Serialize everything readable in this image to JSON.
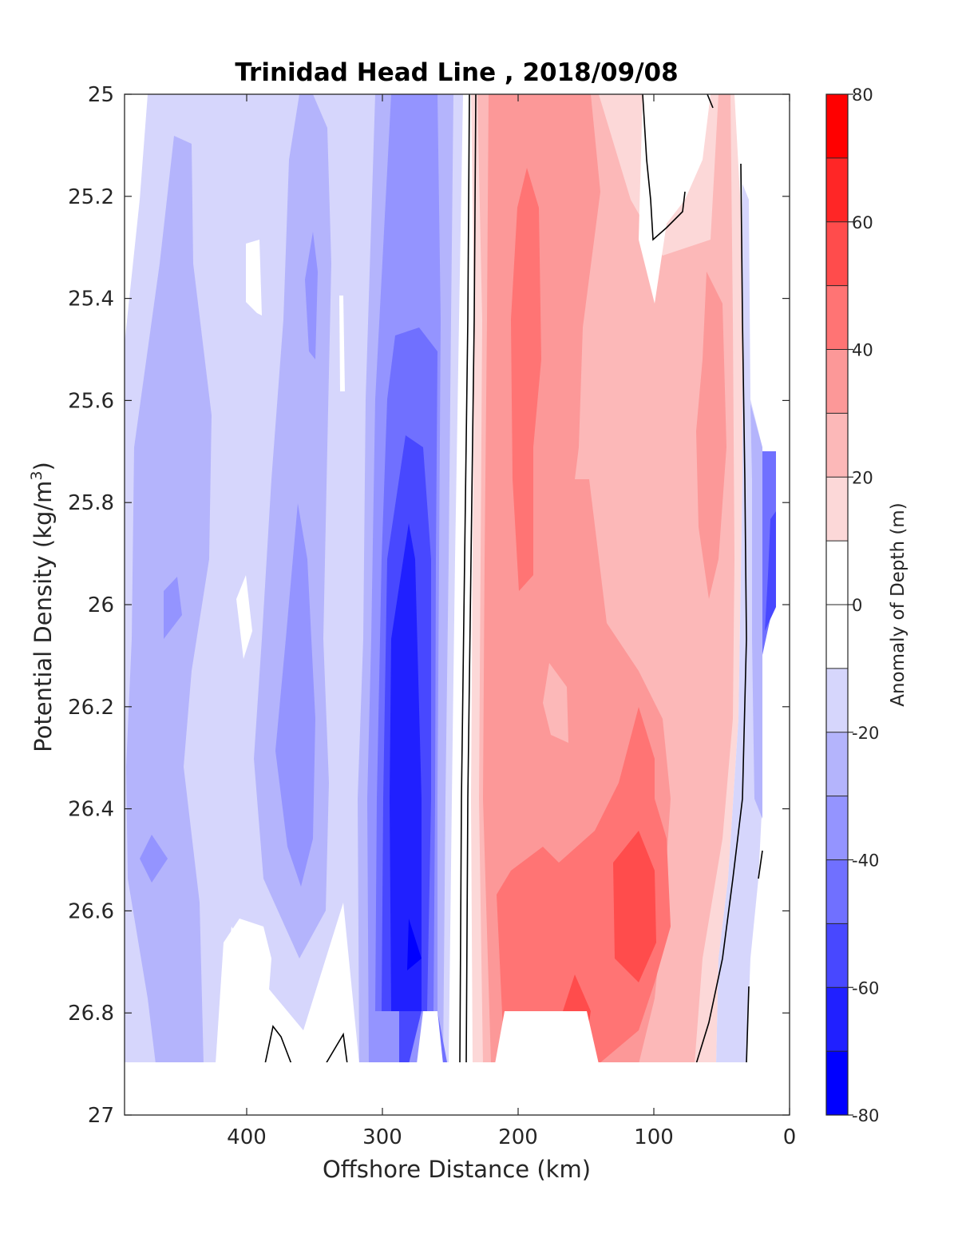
{
  "chart_data": {
    "type": "heatmap",
    "title": "Trinidad Head Line , 2018/09/08",
    "xlabel": "Offshore Distance (km)",
    "ylabel_main": "Potential Density (kg/m",
    "ylabel_sup": "3",
    "ylabel_close": ")",
    "colorbar_label": "Anomaly of Depth (m)",
    "xlim": [
      490,
      0
    ],
    "ylim": [
      25,
      27
    ],
    "y_reversed": true,
    "x_reversed": true,
    "x_ticks": [
      400,
      300,
      200,
      100,
      0
    ],
    "x_tick_labels": [
      "400",
      "300",
      "200",
      "100",
      "0"
    ],
    "y_ticks": [
      25,
      25.2,
      25.4,
      25.6,
      25.8,
      26,
      26.2,
      26.4,
      26.6,
      26.8,
      27
    ],
    "y_tick_labels": [
      "25",
      "25.2",
      "25.4",
      "25.6",
      "25.8",
      "26",
      "26.2",
      "26.4",
      "26.6",
      "26.8",
      "27"
    ],
    "data_bottom_density": 26.9,
    "colorbar": {
      "range": [
        -80,
        80
      ],
      "step": 10,
      "tick_values": [
        80,
        60,
        40,
        20,
        0,
        -20,
        -40,
        -60,
        -80
      ],
      "tick_labels": [
        "80",
        "60",
        "40",
        "20",
        "0",
        "-20",
        "-40",
        "-60",
        "-80"
      ]
    },
    "levels": [
      {
        "lo": -80,
        "hi": -70,
        "color": "#0000ff"
      },
      {
        "lo": -70,
        "hi": -60,
        "color": "#2020ff"
      },
      {
        "lo": -60,
        "hi": -50,
        "color": "#4848ff"
      },
      {
        "lo": -50,
        "hi": -40,
        "color": "#7070ff"
      },
      {
        "lo": -40,
        "hi": -30,
        "color": "#9494ff"
      },
      {
        "lo": -30,
        "hi": -20,
        "color": "#b4b4fc"
      },
      {
        "lo": -20,
        "hi": -10,
        "color": "#d6d6fc"
      },
      {
        "lo": -10,
        "hi": 10,
        "color": "#ffffff"
      },
      {
        "lo": 10,
        "hi": 20,
        "color": "#fcd8d8"
      },
      {
        "lo": 20,
        "hi": 30,
        "color": "#fcb8b8"
      },
      {
        "lo": 30,
        "hi": 40,
        "color": "#fc9898"
      },
      {
        "lo": 40,
        "hi": 50,
        "color": "#ff7474"
      },
      {
        "lo": 50,
        "hi": 60,
        "color": "#ff4c4c"
      },
      {
        "lo": 60,
        "hi": 70,
        "color": "#ff2626"
      },
      {
        "lo": 70,
        "hi": 80,
        "color": "#ff0000"
      }
    ],
    "regions": [
      {
        "name": "offshore-negative-band",
        "x_from": 490,
        "x_to": 258,
        "density_from": 25.0,
        "density_to": 26.9,
        "anomaly": -20
      },
      {
        "name": "offshore-medium-band-1",
        "x_from": 450,
        "x_to": 410,
        "density_from": 25.1,
        "density_to": 26.9,
        "anomaly": -30
      },
      {
        "name": "offshore-medium-band-2",
        "x_from": 370,
        "x_to": 340,
        "density_from": 25.0,
        "density_to": 26.7,
        "anomaly": -30
      },
      {
        "name": "offshore-strong-band",
        "x_from": 310,
        "x_to": 262,
        "density_from": 25.0,
        "density_to": 26.9,
        "anomaly": -40
      },
      {
        "name": "blue-core-outer",
        "x_from": 305,
        "x_to": 262,
        "density_from": 25.4,
        "density_to": 26.9,
        "anomaly": -50
      },
      {
        "name": "blue-core-mid",
        "x_from": 298,
        "x_to": 264,
        "density_from": 25.65,
        "density_to": 26.85,
        "anomaly": -60
      },
      {
        "name": "blue-core-inner",
        "x_from": 290,
        "x_to": 268,
        "density_from": 25.85,
        "density_to": 26.9,
        "anomaly": -70
      },
      {
        "name": "red-outer-band",
        "x_from": 228,
        "x_to": 40,
        "density_from": 25.0,
        "density_to": 26.9,
        "anomaly": 10
      },
      {
        "name": "red-band-2",
        "x_from": 220,
        "x_to": 45,
        "density_from": 25.0,
        "density_to": 26.9,
        "anomaly": 20
      },
      {
        "name": "red-band-3",
        "x_from": 215,
        "x_to": 75,
        "density_from": 25.5,
        "density_to": 26.9,
        "anomaly": 30
      },
      {
        "name": "red-band-4",
        "x_from": 200,
        "x_to": 100,
        "density_from": 25.2,
        "density_to": 26.9,
        "anomaly": 40
      },
      {
        "name": "red-core",
        "x_from": 130,
        "x_to": 95,
        "density_from": 26.45,
        "density_to": 26.75,
        "anomaly": 50
      },
      {
        "name": "coastal-negative-band",
        "x_from": 25,
        "x_to": 10,
        "density_from": 25.7,
        "density_to": 26.1,
        "anomaly": -50
      }
    ]
  }
}
